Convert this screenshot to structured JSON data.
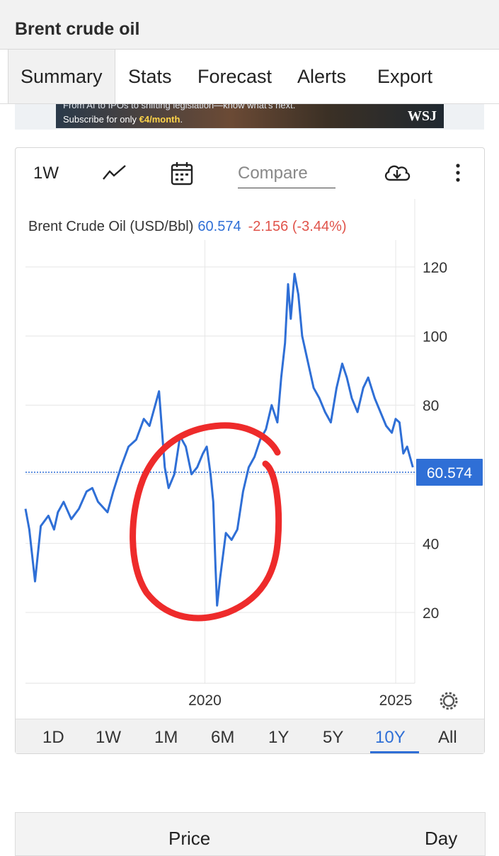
{
  "header": {
    "title": "Brent crude oil"
  },
  "tabs": [
    {
      "label": "Summary"
    },
    {
      "label": "Stats"
    },
    {
      "label": "Forecast"
    },
    {
      "label": "Alerts"
    },
    {
      "label": "Export"
    }
  ],
  "ad": {
    "line1": "From AI to IPOs to shifting legislation—know what's next.",
    "line2_prefix": "Subscribe for only ",
    "line2_price": "€4/month",
    "line2_suffix": ".",
    "logo": "WSJ"
  },
  "toolbar": {
    "interval": "1W",
    "compare_placeholder": "Compare",
    "icons": [
      "line-chart-icon",
      "calendar-icon",
      "download-cloud-icon",
      "more-vertical-icon"
    ]
  },
  "series_label": {
    "name": "Brent Crude Oil (USD/Bbl)",
    "price": "60.574",
    "change": "-2.156 (-3.44%)"
  },
  "last_price_badge": "60.574",
  "ranges": [
    {
      "label": "1D"
    },
    {
      "label": "1W"
    },
    {
      "label": "1M"
    },
    {
      "label": "6M"
    },
    {
      "label": "1Y"
    },
    {
      "label": "5Y"
    },
    {
      "label": "10Y"
    },
    {
      "label": "All"
    }
  ],
  "active_range": "10Y",
  "table_header": {
    "price": "Price",
    "day": "Day"
  },
  "colors": {
    "line": "#2f6fd6",
    "negative": "#e0534a",
    "badge": "#2f6fd6",
    "annotation": "#ee2b2b"
  },
  "chart_data": {
    "type": "line",
    "title": "",
    "xlabel": "",
    "ylabel": "",
    "x_ticks": [
      "2020",
      "2025"
    ],
    "y_ticks": [
      20,
      40,
      60,
      80,
      100,
      120
    ],
    "ylim": [
      0,
      125
    ],
    "xlim": [
      2015.3,
      2025.5
    ],
    "grid": true,
    "last_value": 60.574,
    "series": [
      {
        "x": [
          2015.3,
          2015.4,
          2015.55,
          2015.7,
          2015.9,
          2016.05,
          2016.15,
          2016.3,
          2016.5,
          2016.7,
          2016.9,
          2017.05,
          2017.2,
          2017.45,
          2017.6,
          2017.8,
          2018.0,
          2018.2,
          2018.4,
          2018.55,
          2018.7,
          2018.8,
          2018.95,
          2019.05,
          2019.2,
          2019.35,
          2019.5,
          2019.65,
          2019.8,
          2019.95,
          2020.05,
          2020.15,
          2020.22,
          2020.28,
          2020.32,
          2020.4,
          2020.55,
          2020.7,
          2020.85,
          2021.0,
          2021.15,
          2021.3,
          2021.45,
          2021.6,
          2021.75,
          2021.9,
          2022.0,
          2022.1,
          2022.18,
          2022.25,
          2022.35,
          2022.45,
          2022.55,
          2022.65,
          2022.75,
          2022.85,
          2023.0,
          2023.15,
          2023.3,
          2023.45,
          2023.6,
          2023.72,
          2023.85,
          2024.0,
          2024.15,
          2024.28,
          2024.45,
          2024.6,
          2024.75,
          2024.9,
          2025.0,
          2025.1,
          2025.2,
          2025.3,
          2025.45
        ],
        "y": [
          50,
          44,
          29,
          45,
          48,
          44,
          49,
          52,
          47,
          50,
          55,
          56,
          52,
          49,
          55,
          62,
          68,
          70,
          76,
          74,
          80,
          84,
          62,
          56,
          60,
          71,
          68,
          60,
          62,
          66,
          68,
          60,
          52,
          33,
          22,
          30,
          43,
          41,
          44,
          55,
          62,
          65,
          70,
          73,
          80,
          75,
          88,
          98,
          115,
          105,
          118,
          112,
          100,
          95,
          90,
          85,
          82,
          78,
          75,
          85,
          92,
          88,
          82,
          78,
          85,
          88,
          82,
          78,
          74,
          72,
          76,
          75,
          66,
          68,
          62
        ]
      }
    ]
  }
}
